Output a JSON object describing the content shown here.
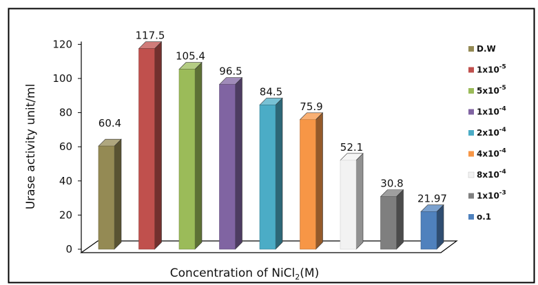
{
  "chart_data": {
    "type": "bar",
    "title": "",
    "xlabel": {
      "main": "Concentration of NiCl",
      "sub": "2",
      "tail": "(M)"
    },
    "ylabel": "Urase activity unit/ml",
    "ylim": [
      0,
      120
    ],
    "yticks": [
      "0",
      "20",
      "40",
      "60",
      "80",
      "100",
      "120"
    ],
    "ytick_values": [
      0,
      20,
      40,
      60,
      80,
      100,
      120
    ],
    "grid": false,
    "legend_position": "right",
    "categories": [
      {
        "base": "D.W",
        "exp": ""
      },
      {
        "base": "1x10",
        "exp": "-5"
      },
      {
        "base": "5x10",
        "exp": "-5"
      },
      {
        "base": "1x10",
        "exp": "-4"
      },
      {
        "base": "2x10",
        "exp": "-4"
      },
      {
        "base": "4x10",
        "exp": "-4"
      },
      {
        "base": "8x10",
        "exp": "-4"
      },
      {
        "base": "1x10",
        "exp": "-3"
      },
      {
        "base": "o.1",
        "exp": ""
      }
    ],
    "values": [
      60.4,
      117.5,
      105.4,
      96.5,
      84.5,
      75.9,
      52.1,
      30.8,
      21.97
    ],
    "labels": [
      "60.4",
      "117.5",
      "105.4",
      "96.5",
      "84.5",
      "75.9",
      "52.1",
      "30.8",
      "21.97"
    ],
    "colors": [
      "#948A54",
      "#C0504D",
      "#9BBB59",
      "#8064A2",
      "#4BACC6",
      "#F79646",
      "#F2F2F2",
      "#7F7F7F",
      "#4F81BD"
    ]
  }
}
